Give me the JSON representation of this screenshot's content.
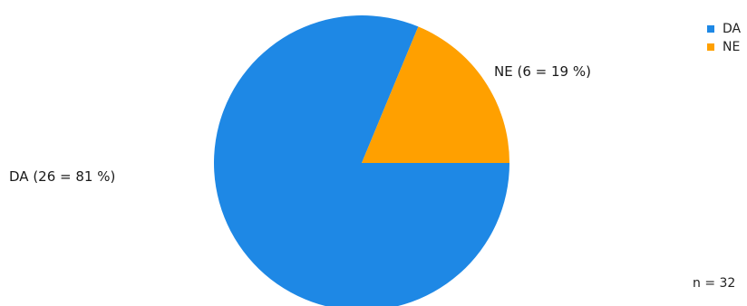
{
  "chart_data": {
    "type": "pie",
    "categories": [
      "DA",
      "NE"
    ],
    "values": [
      26,
      6
    ],
    "percentages": [
      81,
      19
    ],
    "slice_labels": [
      "DA  (26 = 81 %)",
      "NE (6 = 19 %)"
    ],
    "colors": [
      "#1e88e5",
      "#ffa000"
    ],
    "legend": {
      "placement": "top-right",
      "entries": [
        "DA",
        "NE"
      ]
    },
    "total_note": "n = 32"
  }
}
